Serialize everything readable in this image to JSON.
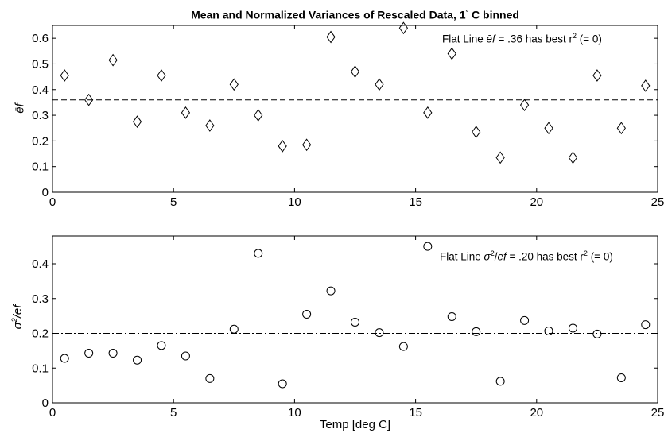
{
  "chart_data": [
    {
      "type": "scatter",
      "title_parts": [
        "Mean and Normalized Variances of Rescaled Data, 1",
        "°",
        " C binned"
      ],
      "annotation_parts": [
        "Flat Line ",
        "ēf",
        " = .36 has best r",
        "2",
        " (= 0)"
      ],
      "ylabel": "ēf",
      "xlabel": "",
      "xlim": [
        0,
        25
      ],
      "ylim": [
        0,
        0.65
      ],
      "xticks": [
        0,
        5,
        10,
        15,
        20,
        25
      ],
      "yticks": [
        0,
        0.1,
        0.2,
        0.3,
        0.4,
        0.5,
        0.6
      ],
      "ytick_labels": [
        "0",
        "0.1",
        "0.2",
        "0.3",
        "0.4",
        "0.5",
        "0.6"
      ],
      "marker": "diamond",
      "reference_line": {
        "y": 0.36,
        "style": "dashed"
      },
      "x": [
        0.5,
        1.5,
        2.5,
        3.5,
        4.5,
        5.5,
        6.5,
        7.5,
        8.5,
        9.5,
        10.5,
        11.5,
        12.5,
        13.5,
        14.5,
        15.5,
        16.5,
        17.5,
        18.5,
        19.5,
        20.5,
        21.5,
        22.5,
        23.5,
        24.5
      ],
      "y": [
        0.455,
        0.36,
        0.515,
        0.275,
        0.455,
        0.31,
        0.26,
        0.42,
        0.3,
        0.18,
        0.185,
        0.605,
        0.47,
        0.42,
        0.64,
        0.31,
        0.54,
        0.235,
        0.135,
        0.34,
        0.25,
        0.135,
        0.455,
        0.25,
        0.415
      ],
      "grid": false
    },
    {
      "type": "scatter",
      "annotation_parts": [
        "Flat Line ",
        "σ",
        "2",
        "/",
        "ēf",
        " = .20 has best r",
        "2",
        " (= 0)"
      ],
      "ylabel_parts": [
        "σ",
        "2",
        "/",
        "ēf"
      ],
      "xlabel": "Temp [deg C]",
      "xlim": [
        0,
        25
      ],
      "ylim": [
        0,
        0.48
      ],
      "xticks": [
        0,
        5,
        10,
        15,
        20,
        25
      ],
      "yticks": [
        0,
        0.1,
        0.2,
        0.3,
        0.4
      ],
      "ytick_labels": [
        "0",
        "0.1",
        "0.2",
        "0.3",
        "0.4"
      ],
      "marker": "circle",
      "reference_line": {
        "y": 0.2,
        "style": "dash-dot"
      },
      "x": [
        0.5,
        1.5,
        2.5,
        3.5,
        4.5,
        5.5,
        6.5,
        7.5,
        8.5,
        9.5,
        10.5,
        11.5,
        12.5,
        13.5,
        14.5,
        15.5,
        16.5,
        17.5,
        18.5,
        19.5,
        20.5,
        21.5,
        22.5,
        23.5,
        24.5
      ],
      "y": [
        0.128,
        0.143,
        0.143,
        0.123,
        0.165,
        0.135,
        0.07,
        0.212,
        0.43,
        0.055,
        0.255,
        0.322,
        0.232,
        0.202,
        0.162,
        0.45,
        0.248,
        0.205,
        0.062,
        0.237,
        0.207,
        0.215,
        0.198,
        0.072,
        0.225
      ],
      "grid": false
    }
  ]
}
